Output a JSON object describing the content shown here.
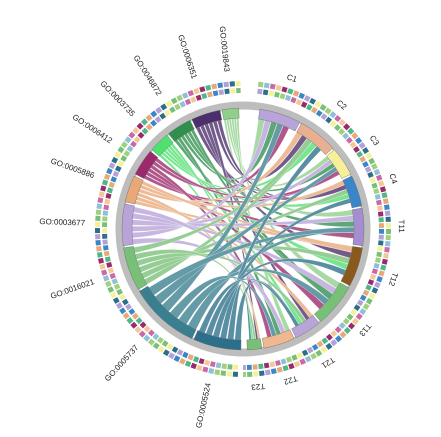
{
  "go_terms": [
    {
      "label": "GO:0019843",
      "color": "#8fcf8a"
    },
    {
      "label": "GO:0006351",
      "color": "#4b2e6b"
    },
    {
      "label": "GO:0046872",
      "color": "#2f8f4c"
    },
    {
      "label": "GO:0003735",
      "color": "#50e070"
    },
    {
      "label": "GO:0006412",
      "color": "#9a2a6b"
    },
    {
      "label": "GO:0005886",
      "color": "#e8a878"
    },
    {
      "label": "GO:0003677",
      "color": "#b8a4d8"
    },
    {
      "label": "GO:0016021",
      "color": "#78c078"
    },
    {
      "label": "GO:0005737",
      "color": "#3a7f8f"
    },
    {
      "label": "GO:0005524",
      "color": "#2c6f8a"
    }
  ],
  "samples": [
    {
      "label": "C1",
      "color": "#b8a4d8"
    },
    {
      "label": "C2",
      "color": "#e8b090"
    },
    {
      "label": "C3",
      "color": "#f6f09a"
    },
    {
      "label": "C4",
      "color": "#3a86c8"
    },
    {
      "label": "T11",
      "color": "#a48ed0"
    },
    {
      "label": "T12",
      "color": "#8a5a1c"
    },
    {
      "label": "T13",
      "color": "#78c078"
    },
    {
      "label": "T21",
      "color": "#b8a4d8"
    },
    {
      "label": "T22",
      "color": "#f0b890"
    },
    {
      "label": "T23",
      "color": "#78c078"
    }
  ],
  "ring_palette": [
    "#8ec0d8",
    "#b4a0d6",
    "#f2c898",
    "#f6f09a",
    "#4fb88a",
    "#a0d07e",
    "#3a86c8",
    "#c86aa8",
    "#2c6f8a",
    "#9a2a6b",
    "#78c078",
    "#e8a878"
  ]
}
